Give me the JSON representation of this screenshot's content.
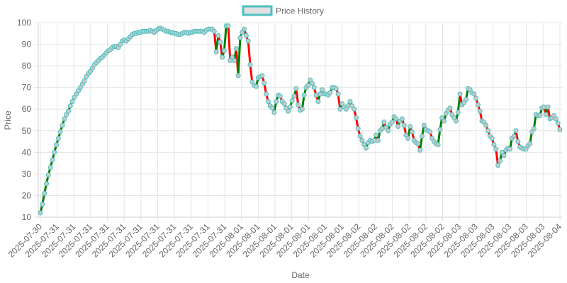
{
  "chart_data": {
    "type": "line",
    "xlabel": "Date",
    "ylabel": "Price",
    "ylim": [
      10,
      100
    ],
    "y_ticks": [
      10,
      20,
      30,
      40,
      50,
      60,
      70,
      80,
      90,
      100
    ],
    "x_tick_labels": [
      "2025-07-30",
      "2025-07-31",
      "2025-07-31",
      "2025-07-31",
      "2025-07-31",
      "2025-07-31",
      "2025-07-31",
      "2025-07-31",
      "2025-07-31",
      "2025-07-31",
      "2025-07-31",
      "2025-07-31",
      "2025-08-01",
      "2025-08-01",
      "2025-08-01",
      "2025-08-01",
      "2025-08-01",
      "2025-08-01",
      "2025-08-01",
      "2025-08-02",
      "2025-08-02",
      "2025-08-02",
      "2025-08-02",
      "2025-08-02",
      "2025-08-02",
      "2025-08-03",
      "2025-08-03",
      "2025-08-03",
      "2025-08-03",
      "2025-08-03",
      "2025-08-03",
      "2025-08-04"
    ],
    "grid": true,
    "legend_position": "top",
    "series": [
      {
        "name": "Price History",
        "legend_border_color": "#4bc0c0",
        "legend_fill_color": "#e0e0e0",
        "point_stroke_color": "#4bc0c0",
        "point_fill_color": "#c9c9c9",
        "up_color": "#008000",
        "down_color": "#ff0000",
        "values": [
          12,
          16,
          21,
          25.5,
          29.5,
          33,
          36.5,
          40,
          43.5,
          46.5,
          49.5,
          52.5,
          55.5,
          57.5,
          59,
          61.5,
          63.5,
          65.5,
          67,
          68.5,
          70,
          71.5,
          73,
          75,
          76.5,
          77.5,
          79,
          80.5,
          81.5,
          82.5,
          83.5,
          84,
          85,
          86,
          87,
          87.5,
          88.5,
          89,
          89,
          88.5,
          90,
          91.5,
          92,
          91.5,
          92.5,
          93.5,
          94.5,
          95,
          95,
          95.5,
          95.5,
          96,
          96,
          96,
          96,
          96.5,
          96,
          95.5,
          96.5,
          97,
          97.5,
          97,
          96.5,
          96,
          96,
          95.5,
          95.5,
          95,
          95,
          94.5,
          94.5,
          95,
          95.5,
          95.5,
          95,
          95.5,
          95.5,
          96,
          96,
          96,
          96,
          96,
          95.5,
          96.5,
          97,
          97,
          97,
          96,
          86.5,
          94,
          91,
          84,
          87,
          98.5,
          98.5,
          82.5,
          84,
          82.5,
          88,
          75.5,
          93,
          95.5,
          97,
          94,
          91.5,
          80.5,
          72.5,
          71,
          70.5,
          74.5,
          75,
          75.5,
          72,
          67,
          63.5,
          61.5,
          60.5,
          58.5,
          63.5,
          66.5,
          66,
          63.5,
          62.5,
          60.5,
          59,
          61,
          64,
          66,
          69.5,
          62,
          59.5,
          60,
          66.5,
          70,
          71,
          73.5,
          72,
          70,
          66.5,
          63.5,
          67,
          69,
          67,
          67,
          66.5,
          67.5,
          70,
          70,
          69.5,
          67,
          60,
          62.5,
          61,
          60,
          61.5,
          63.5,
          61.5,
          60,
          56,
          51,
          47.5,
          45.5,
          43.5,
          42,
          44.5,
          45.5,
          45,
          45.5,
          48,
          45.5,
          50,
          51,
          54,
          51.5,
          50,
          53,
          54,
          56.5,
          55.5,
          52,
          54.5,
          55.5,
          52.5,
          48,
          46.5,
          52,
          49.5,
          45.5,
          44.5,
          44,
          41,
          47.5,
          52.5,
          50.5,
          50,
          49.5,
          46.5,
          45,
          44,
          43.5,
          50.5,
          56,
          54.5,
          58,
          59.5,
          60.5,
          57.5,
          56,
          54.5,
          58.5,
          67,
          62,
          63,
          64.5,
          69.5,
          69,
          67.5,
          67,
          65,
          62,
          59,
          54.5,
          54,
          52.5,
          50,
          47.5,
          46.5,
          43.5,
          41.5,
          34,
          36,
          40,
          38.5,
          41,
          42,
          41.5,
          46.5,
          47.5,
          50,
          45,
          42.5,
          42,
          41.5,
          41.5,
          43,
          44,
          49.5,
          51,
          57.5,
          57,
          57,
          60.5,
          61,
          57.5,
          61,
          55.5,
          56,
          57,
          55.5,
          53.5,
          50.5
        ]
      }
    ]
  }
}
